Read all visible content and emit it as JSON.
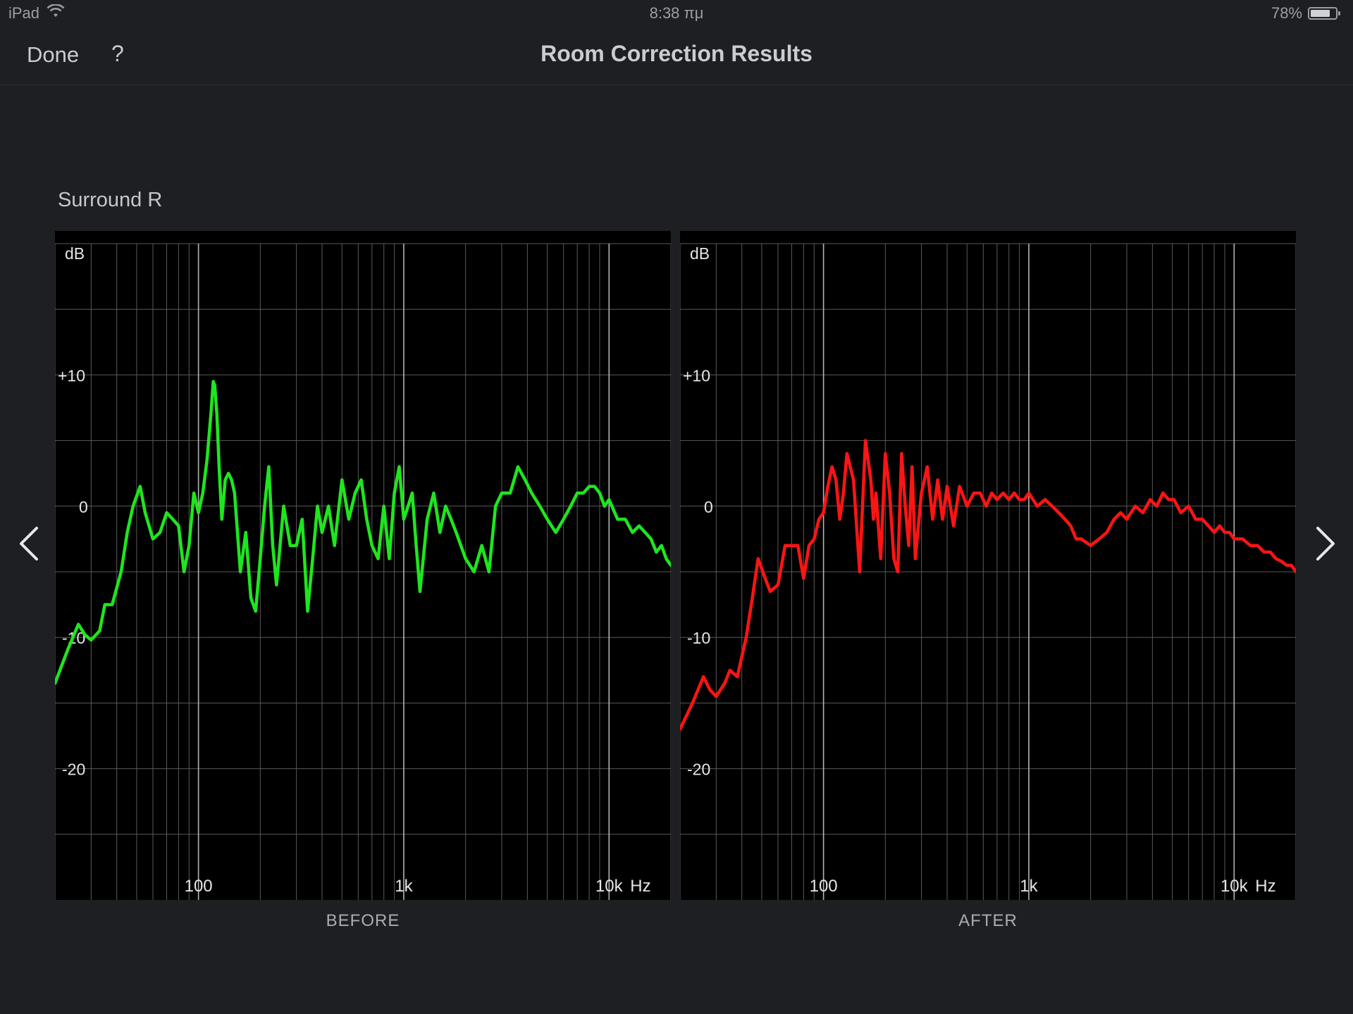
{
  "status_bar": {
    "device": "iPad",
    "time": "8:38 πμ",
    "battery_text": "78%",
    "battery_level": 0.78,
    "wifi_icon": "wifi-icon",
    "battery_icon": "battery-icon"
  },
  "nav": {
    "done_label": "Done",
    "help_label": "?",
    "title": "Room Correction Results"
  },
  "channel_name": "Surround R",
  "icons": {
    "prev": "chevron-left-icon",
    "next": "chevron-right-icon"
  },
  "colors": {
    "before_curve": "#1ee61e",
    "after_curve": "#ff1414",
    "plot_background": "#000000",
    "grid": "#5a5a5a"
  },
  "chart_data": [
    {
      "type": "line",
      "title": "BEFORE",
      "ylabel": "dB",
      "x_unit_label": "Hz",
      "x_scale": "log",
      "xlim": [
        20,
        20000
      ],
      "ylim": [
        -30,
        20
      ],
      "y_ticks": [
        {
          "value": 10,
          "label": "+10"
        },
        {
          "value": 0,
          "label": "0"
        },
        {
          "value": -10,
          "label": "-10"
        },
        {
          "value": -20,
          "label": "-20"
        }
      ],
      "x_ticks": [
        {
          "value": 100,
          "label": "100"
        },
        {
          "value": 1000,
          "label": "1k"
        },
        {
          "value": 10000,
          "label": "10k"
        }
      ],
      "grid": true,
      "series": [
        {
          "color": "#1ee61e",
          "x": [
            20,
            23,
            26,
            28,
            30,
            33,
            35,
            38,
            42,
            45,
            48,
            52,
            55,
            60,
            65,
            70,
            75,
            80,
            85,
            90,
            95,
            100,
            105,
            110,
            115,
            118,
            120,
            123,
            126,
            130,
            135,
            140,
            145,
            150,
            160,
            170,
            180,
            190,
            200,
            210,
            220,
            230,
            240,
            260,
            280,
            300,
            320,
            340,
            360,
            380,
            400,
            430,
            460,
            500,
            540,
            580,
            620,
            660,
            700,
            750,
            800,
            850,
            900,
            950,
            1000,
            1050,
            1100,
            1150,
            1200,
            1300,
            1400,
            1500,
            1600,
            1700,
            1800,
            2000,
            2200,
            2400,
            2600,
            2800,
            3000,
            3300,
            3600,
            3900,
            4200,
            4600,
            5000,
            5500,
            6000,
            6500,
            7000,
            7500,
            8000,
            8500,
            9000,
            9500,
            10000,
            11000,
            12000,
            13000,
            14000,
            15000,
            16000,
            17000,
            18000,
            19000,
            20000
          ],
          "y": [
            -13.5,
            -11,
            -9,
            -9.8,
            -10.2,
            -9.5,
            -7.5,
            -7.5,
            -5,
            -2,
            0,
            1.5,
            -0.5,
            -2.5,
            -2,
            -0.5,
            -1,
            -1.5,
            -5,
            -3,
            1,
            -0.5,
            1,
            3.5,
            7,
            9.5,
            9.2,
            7,
            3,
            -1,
            2,
            2.5,
            2,
            1,
            -5,
            -2,
            -7,
            -8,
            -4,
            0,
            3,
            -3,
            -6,
            0,
            -3,
            -3,
            -1,
            -8,
            -4,
            0,
            -2,
            0,
            -3,
            2,
            -1,
            1,
            2,
            -1,
            -3,
            -4,
            0,
            -4,
            1,
            3,
            -1,
            0,
            1,
            -3,
            -6.5,
            -1,
            1,
            -2,
            0,
            -1,
            -2,
            -4,
            -5,
            -3,
            -5,
            0,
            1,
            1,
            3,
            2,
            1,
            0,
            -1,
            -2,
            -1,
            0,
            1,
            1,
            1.5,
            1.5,
            1,
            0,
            0.5,
            -1,
            -1,
            -2,
            -1.5,
            -2,
            -2.5,
            -3.5,
            -3,
            -4,
            -4.5
          ]
        }
      ]
    },
    {
      "type": "line",
      "title": "AFTER",
      "ylabel": "dB",
      "x_unit_label": "Hz",
      "x_scale": "log",
      "xlim": [
        20,
        20000
      ],
      "ylim": [
        -30,
        20
      ],
      "y_ticks": [
        {
          "value": 10,
          "label": "+10"
        },
        {
          "value": 0,
          "label": "0"
        },
        {
          "value": -10,
          "label": "-10"
        },
        {
          "value": -20,
          "label": "-20"
        }
      ],
      "x_ticks": [
        {
          "value": 100,
          "label": "100"
        },
        {
          "value": 1000,
          "label": "1k"
        },
        {
          "value": 10000,
          "label": "10k"
        }
      ],
      "grid": true,
      "series": [
        {
          "color": "#ff1414",
          "x": [
            20,
            23,
            26,
            28,
            30,
            33,
            35,
            38,
            42,
            45,
            48,
            52,
            55,
            60,
            65,
            70,
            75,
            80,
            85,
            90,
            95,
            100,
            105,
            110,
            115,
            120,
            125,
            130,
            140,
            150,
            160,
            170,
            175,
            180,
            190,
            200,
            210,
            220,
            230,
            240,
            250,
            260,
            270,
            280,
            300,
            320,
            340,
            360,
            380,
            400,
            430,
            460,
            500,
            540,
            580,
            620,
            660,
            700,
            750,
            800,
            850,
            900,
            950,
            1000,
            1100,
            1200,
            1300,
            1400,
            1500,
            1600,
            1700,
            1800,
            2000,
            2200,
            2400,
            2600,
            2800,
            3000,
            3300,
            3600,
            3900,
            4200,
            4500,
            4800,
            5100,
            5500,
            6000,
            6500,
            7000,
            7500,
            8000,
            8500,
            9000,
            9500,
            10000,
            11000,
            12000,
            13000,
            14000,
            15000,
            16000,
            17000,
            18000,
            19000,
            20000
          ],
          "y": [
            -17,
            -15,
            -13,
            -14,
            -14.5,
            -13.5,
            -12.5,
            -13,
            -10,
            -7,
            -4,
            -5.5,
            -6.5,
            -6,
            -3,
            -3,
            -3,
            -5.5,
            -3,
            -2.5,
            -1,
            -0.5,
            1.5,
            3,
            2,
            -1,
            1,
            4,
            2,
            -5,
            5,
            2,
            -1,
            1,
            -4,
            4,
            1,
            -4,
            -5,
            4,
            0,
            -3,
            3,
            -4,
            1,
            3,
            -1,
            2,
            -1,
            1.5,
            -1.5,
            1.5,
            0,
            1,
            1,
            0,
            1,
            0.5,
            1,
            0.5,
            1,
            0.5,
            0.5,
            1,
            0,
            0.5,
            0,
            -0.5,
            -1,
            -1.5,
            -2.5,
            -2.5,
            -3,
            -2.5,
            -2,
            -1,
            -0.5,
            -1,
            0,
            -0.5,
            0.5,
            0,
            1,
            0.5,
            0.5,
            -0.5,
            0,
            -1,
            -1,
            -1.5,
            -2,
            -1.5,
            -2,
            -2,
            -2.5,
            -2.5,
            -3,
            -3,
            -3.5,
            -3.5,
            -4,
            -4.2,
            -4.5,
            -4.5,
            -5
          ]
        }
      ]
    }
  ]
}
